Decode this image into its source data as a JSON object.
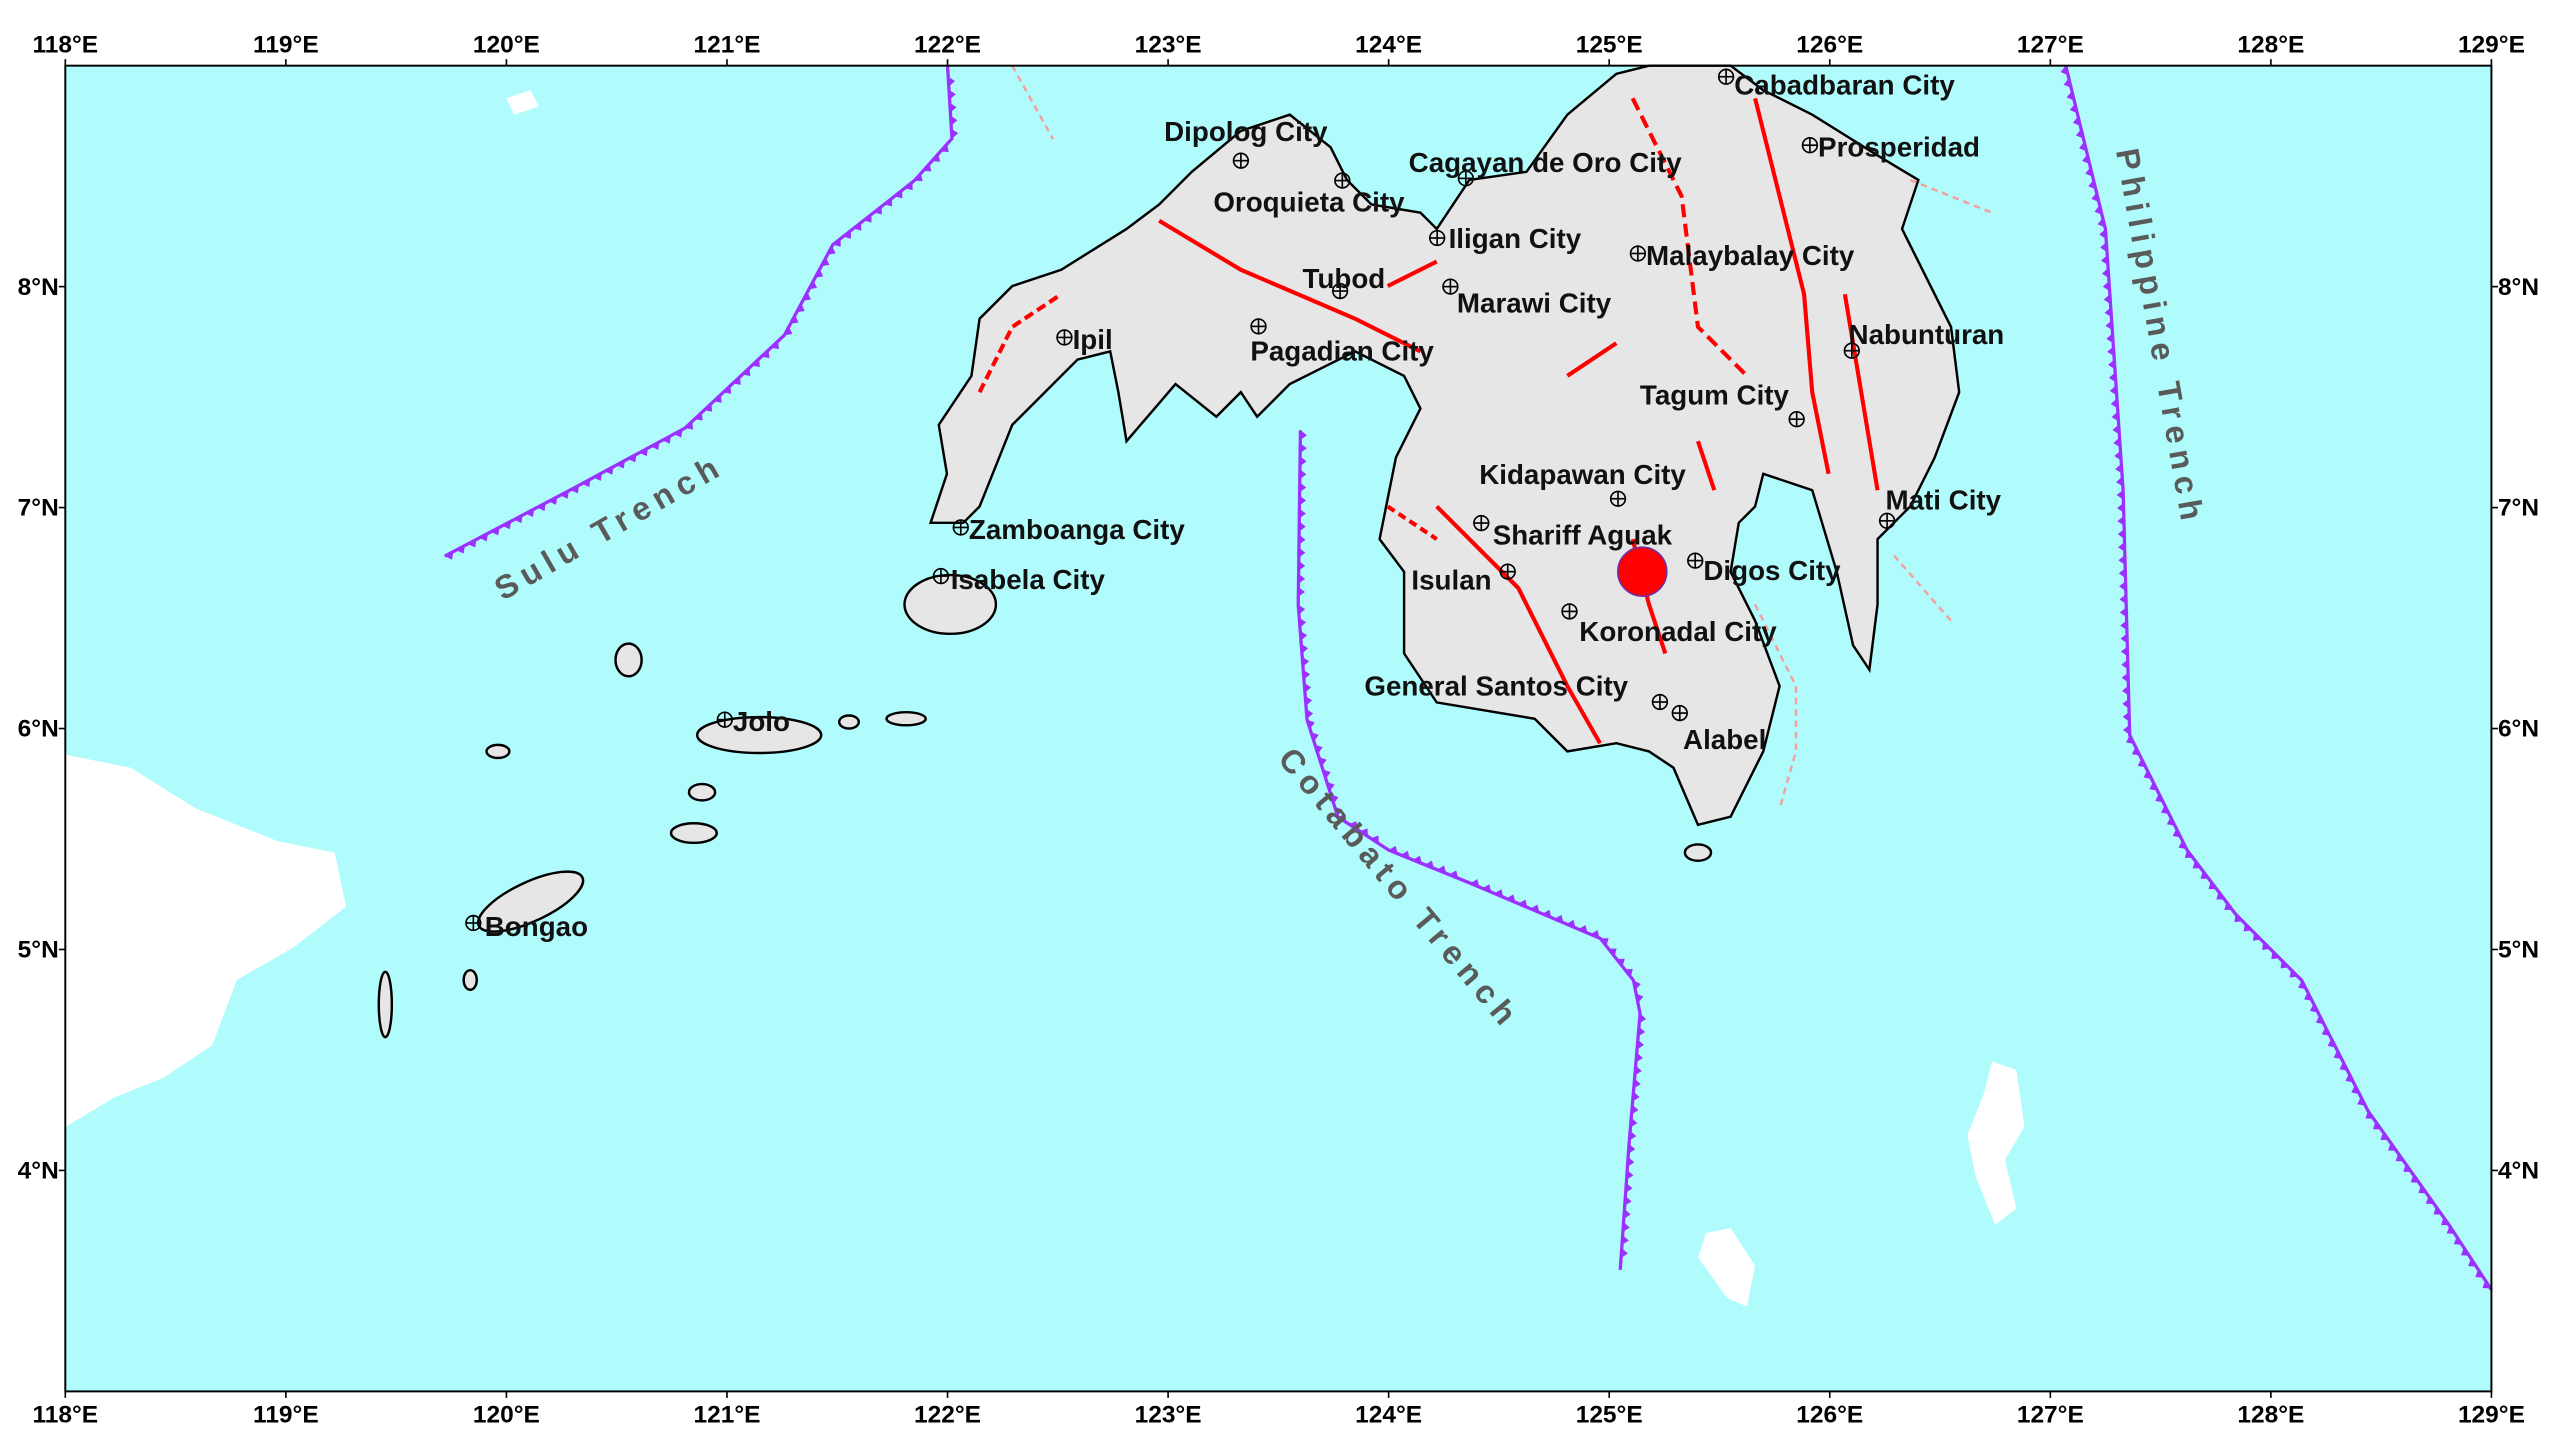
{
  "map": {
    "extent": {
      "lon": [
        118,
        129
      ],
      "lat": [
        3,
        9
      ]
    },
    "colors": {
      "sea": "#b0fcfc",
      "land": "#e6e6e6",
      "neighbor_land": "#ffffff",
      "fault": "#ff0000",
      "trench": "#9b30ff",
      "epicenter": "#ff0000"
    },
    "lon_ticks": [
      "118°E",
      "119°E",
      "120°E",
      "121°E",
      "122°E",
      "123°E",
      "124°E",
      "125°E",
      "126°E",
      "127°E",
      "128°E",
      "129°E"
    ],
    "lat_ticks": [
      "8°N",
      "7°N",
      "6°N",
      "5°N",
      "4°N"
    ],
    "epicenter": {
      "lon": 125.15,
      "lat": 6.71
    },
    "cities": [
      {
        "name": "Dipolog City",
        "lon": 123.33,
        "lat": 8.57
      },
      {
        "name": "Oroquieta City",
        "lon": 123.79,
        "lat": 8.48
      },
      {
        "name": "Cagayan de Oro City",
        "lon": 124.35,
        "lat": 8.49
      },
      {
        "name": "Iligan City",
        "lon": 124.22,
        "lat": 8.22
      },
      {
        "name": "Tubod",
        "lon": 123.78,
        "lat": 7.98
      },
      {
        "name": "Marawi City",
        "lon": 124.28,
        "lat": 8.0
      },
      {
        "name": "Pagadian City",
        "lon": 123.41,
        "lat": 7.82
      },
      {
        "name": "Ipil",
        "lon": 122.53,
        "lat": 7.77
      },
      {
        "name": "Malaybalay City",
        "lon": 125.13,
        "lat": 8.15
      },
      {
        "name": "Cabadbaran City",
        "lon": 125.53,
        "lat": 8.95
      },
      {
        "name": "Prosperidad",
        "lon": 125.91,
        "lat": 8.64
      },
      {
        "name": "Nabunturan",
        "lon": 126.1,
        "lat": 7.71
      },
      {
        "name": "Tagum City",
        "lon": 125.85,
        "lat": 7.4
      },
      {
        "name": "Kidapawan City",
        "lon": 125.04,
        "lat": 7.04
      },
      {
        "name": "Mati City",
        "lon": 126.26,
        "lat": 6.94
      },
      {
        "name": "Shariff Aguak",
        "lon": 124.42,
        "lat": 6.93
      },
      {
        "name": "Digos City",
        "lon": 125.39,
        "lat": 6.76
      },
      {
        "name": "Isulan",
        "lon": 124.54,
        "lat": 6.71
      },
      {
        "name": "Koronadal City",
        "lon": 124.82,
        "lat": 6.53
      },
      {
        "name": "General Santos City",
        "lon": 125.23,
        "lat": 6.12
      },
      {
        "name": "Alabel",
        "lon": 125.32,
        "lat": 6.07
      },
      {
        "name": "Zamboanga City",
        "lon": 122.06,
        "lat": 6.91
      },
      {
        "name": "Isabela City",
        "lon": 121.97,
        "lat": 6.69
      },
      {
        "name": "Jolo",
        "lon": 120.99,
        "lat": 6.04
      },
      {
        "name": "Bongao",
        "lon": 119.85,
        "lat": 5.12
      }
    ],
    "trenches": [
      {
        "name": "Sulu Trench",
        "path": [
          [
            119.72,
            6.78
          ],
          [
            120.29,
            7.08
          ],
          [
            120.81,
            7.36
          ],
          [
            121.26,
            7.78
          ],
          [
            121.48,
            8.19
          ],
          [
            121.85,
            8.48
          ],
          [
            122.02,
            8.67
          ],
          [
            122.0,
            9.0
          ]
        ]
      },
      {
        "name": "Cotabato Trench",
        "path": [
          [
            123.6,
            7.35
          ],
          [
            123.59,
            6.56
          ],
          [
            123.63,
            6.04
          ],
          [
            123.77,
            5.6
          ],
          [
            124.0,
            5.45
          ],
          [
            124.37,
            5.3
          ],
          [
            124.96,
            5.05
          ],
          [
            125.11,
            4.86
          ],
          [
            125.14,
            4.71
          ],
          [
            125.09,
            4.12
          ],
          [
            125.05,
            3.55
          ]
        ]
      },
      {
        "name": "Philippine Trench",
        "path": [
          [
            127.07,
            9.0
          ],
          [
            127.25,
            8.26
          ],
          [
            127.33,
            7.08
          ],
          [
            127.36,
            5.97
          ],
          [
            127.62,
            5.45
          ],
          [
            127.84,
            5.16
          ],
          [
            128.14,
            4.86
          ],
          [
            128.44,
            4.27
          ],
          [
            128.81,
            3.75
          ],
          [
            129.0,
            3.46
          ]
        ]
      }
    ]
  }
}
